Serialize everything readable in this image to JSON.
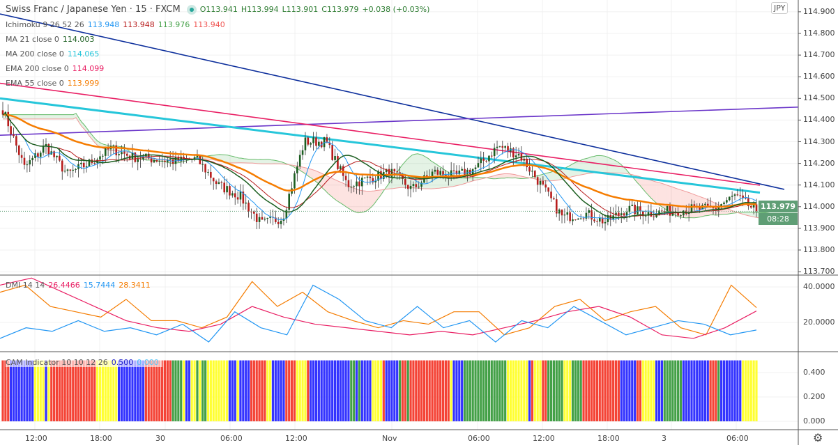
{
  "header": {
    "symbol": "Swiss Franc / Japanese Yen · 15 · FXCM",
    "open": "O113.941",
    "high": "H113.994",
    "low": "L113.901",
    "close": "C113.979",
    "change": "+0.038 (+0.03%)"
  },
  "indicators": [
    {
      "name": "Ichimoku 9 26 52 26",
      "values": [
        {
          "v": "113.948",
          "color": "#2196f3"
        },
        {
          "v": "113.948",
          "color": "#b71c1c"
        },
        {
          "v": "113.976",
          "color": "#43a047"
        },
        {
          "v": "113.940",
          "color": "#ef5350"
        }
      ]
    },
    {
      "name": "MA 21 close 0",
      "values": [
        {
          "v": "114.003",
          "color": "#1b5e20"
        }
      ]
    },
    {
      "name": "MA 200 close 0",
      "values": [
        {
          "v": "114.065",
          "color": "#26c6da"
        }
      ]
    },
    {
      "name": "EMA 200 close 0",
      "values": [
        {
          "v": "114.099",
          "color": "#e91e63"
        }
      ]
    },
    {
      "name": "EMA 55 close 0",
      "values": [
        {
          "v": "113.999",
          "color": "#f57c00"
        }
      ]
    }
  ],
  "dmi_legend": {
    "name": "DMI 14 14",
    "values": [
      {
        "v": "26.4466",
        "color": "#e91e63"
      },
      {
        "v": "15.7444",
        "color": "#2196f3"
      },
      {
        "v": "28.3411",
        "color": "#f57c00"
      }
    ]
  },
  "cam_legend": {
    "name": "CAM Indicator 10 10 12 26",
    "values": [
      {
        "v": "0.500",
        "color": "#2222cc"
      },
      {
        "v": "0.000",
        "color": "#4fc3f7"
      }
    ]
  },
  "price_axis": {
    "currency": "JPY",
    "ticks": [
      "114.900",
      "114.800",
      "114.700",
      "114.600",
      "114.500",
      "114.400",
      "114.300",
      "114.200",
      "114.100",
      "114.000",
      "113.900",
      "113.800",
      "113.700"
    ],
    "last_price": "113.979",
    "countdown": "08:28"
  },
  "dmi_axis": {
    "ticks": [
      "40.0000",
      "20.0000"
    ]
  },
  "cam_axis": {
    "ticks": [
      "0.400",
      "0.200",
      "0.000"
    ]
  },
  "time_axis": {
    "ticks": [
      "12:00",
      "18:00",
      "30",
      "06:00",
      "12:00",
      "Nov",
      "06:00",
      "12:00",
      "18:00",
      "3",
      "06:00"
    ]
  },
  "colors": {
    "up": "#26a69a",
    "down": "#b71c1c",
    "candle_up": "#1b5e20",
    "cam_palette": [
      "#f44336",
      "#3333ff",
      "#ffff33",
      "#43a047"
    ]
  },
  "chart_data": [
    {
      "type": "candlestick",
      "pane": "price",
      "ylim": [
        113.7,
        114.9
      ],
      "close_samples": [
        114.45,
        114.18,
        114.28,
        114.15,
        114.2,
        114.27,
        114.23,
        114.22,
        114.21,
        114.22,
        114.1,
        114.05,
        113.92,
        113.95,
        114.3,
        114.3,
        114.1,
        114.13,
        114.16,
        114.08,
        114.16,
        114.14,
        114.18,
        114.28,
        114.24,
        114.1,
        113.95,
        113.97,
        113.93,
        113.99,
        113.97,
        113.98,
        113.99,
        113.99,
        114.05,
        113.979
      ],
      "trendlines": [
        {
          "color": "#0d2f9c",
          "from": 114.89,
          "to": 114.08
        },
        {
          "color": "#6a35c9",
          "from": 114.33,
          "to": 114.46
        }
      ],
      "ma200": {
        "from": 114.5,
        "to": 114.065
      },
      "ema200": {
        "from": 114.57,
        "to": 114.099
      }
    },
    {
      "type": "line",
      "pane": "DMI",
      "ylim": [
        0,
        48
      ],
      "series": [
        {
          "color": "#f57c00",
          "values": [
            37,
            41,
            29,
            26,
            23,
            33,
            21,
            21,
            17,
            23,
            43,
            29,
            37,
            26,
            21,
            17,
            21,
            19,
            26,
            26,
            13,
            17,
            29,
            33,
            21,
            26,
            29,
            17,
            13,
            41,
            28.34
          ]
        },
        {
          "color": "#e91e63",
          "values": [
            41,
            45,
            37,
            29,
            21,
            17,
            15,
            19,
            29,
            23,
            19,
            17,
            15,
            13,
            15,
            13,
            17,
            21,
            26,
            29,
            23,
            13,
            11,
            17,
            26.45
          ]
        },
        {
          "color": "#2196f3",
          "values": [
            11,
            17,
            15,
            21,
            15,
            17,
            13,
            19,
            9,
            26,
            17,
            13,
            41,
            33,
            21,
            17,
            29,
            17,
            21,
            9,
            21,
            17,
            29,
            21,
            13,
            17,
            21,
            19,
            13,
            15.74
          ]
        }
      ]
    },
    {
      "type": "bar",
      "pane": "CAM",
      "ylim": [
        0,
        0.5
      ]
    }
  ]
}
